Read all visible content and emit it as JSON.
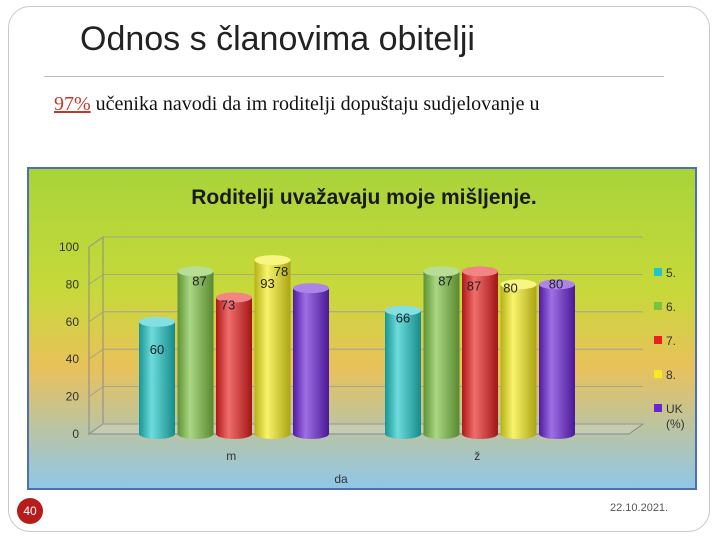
{
  "slide": {
    "title": "Odnos s članovima obitelji",
    "body_percent": "97%",
    "body_text": " učenika navodi da im roditelji dopuštaju sudjelovanje u",
    "page_number": "40",
    "date": "22.10.2021."
  },
  "chart_data": {
    "type": "bar",
    "title": "Roditelji uvažavaju moje mišljenje.",
    "xlabel": "da",
    "ylabel": "",
    "ylim": [
      0,
      100
    ],
    "yticks": [
      "0",
      "20",
      "40",
      "60",
      "80",
      "100"
    ],
    "categories": [
      "m",
      "ž"
    ],
    "legend_position": "right",
    "legend_note": "(%)",
    "series": [
      {
        "name": "5.",
        "color": "#1fc7c7",
        "values": [
          60,
          66
        ]
      },
      {
        "name": "6.",
        "color": "#7cc242",
        "values": [
          87,
          87
        ]
      },
      {
        "name": "7.",
        "color": "#e8201e",
        "values": [
          73,
          87
        ]
      },
      {
        "name": "8.",
        "color": "#f4ec1c",
        "values": [
          93,
          80
        ]
      },
      {
        "name": "UK",
        "color": "#6a22d6",
        "values": [
          78,
          80
        ]
      }
    ]
  }
}
